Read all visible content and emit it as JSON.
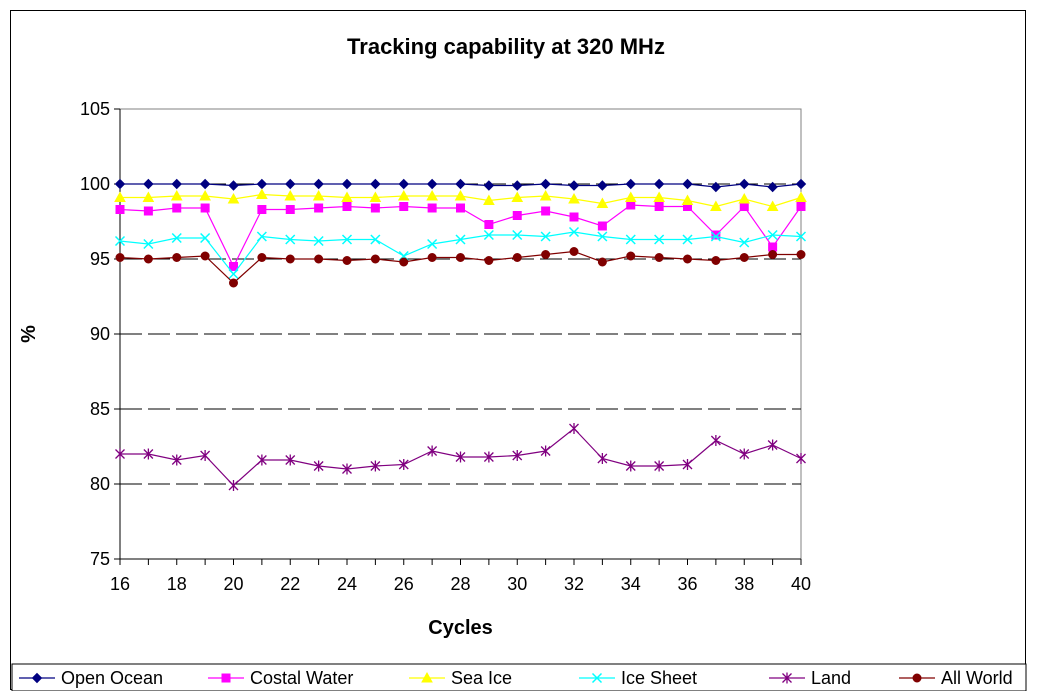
{
  "chart_data": {
    "type": "line",
    "title": "Tracking capability at 320 MHz",
    "xlabel": "Cycles",
    "ylabel": "%",
    "xlim": [
      16,
      40
    ],
    "ylim": [
      75,
      105
    ],
    "x_ticks": [
      16,
      18,
      20,
      22,
      24,
      26,
      28,
      30,
      32,
      34,
      36,
      38,
      40
    ],
    "y_ticks": [
      75,
      80,
      85,
      90,
      95,
      100,
      105
    ],
    "grid": "horizontal dashed",
    "legend_position": "bottom",
    "x": [
      16,
      17,
      18,
      19,
      20,
      21,
      22,
      23,
      24,
      25,
      26,
      27,
      28,
      29,
      30,
      31,
      32,
      33,
      34,
      35,
      36,
      37,
      38,
      39,
      40
    ],
    "series": [
      {
        "name": "Open Ocean",
        "color": "#000080",
        "marker": "diamond",
        "values": [
          100,
          100,
          100,
          100,
          99.9,
          100,
          100,
          100,
          100,
          100,
          100,
          100,
          100,
          99.9,
          99.9,
          100,
          99.9,
          99.9,
          100,
          100,
          100,
          99.8,
          100,
          99.8,
          100
        ]
      },
      {
        "name": "Costal Water",
        "color": "#ff00ff",
        "marker": "square",
        "values": [
          98.3,
          98.2,
          98.4,
          98.4,
          94.5,
          98.3,
          98.3,
          98.4,
          98.5,
          98.4,
          98.5,
          98.4,
          98.4,
          97.3,
          97.9,
          98.2,
          97.8,
          97.2,
          98.6,
          98.5,
          98.5,
          96.6,
          98.5,
          95.8,
          98.5
        ]
      },
      {
        "name": "Sea Ice",
        "color": "#ffff00",
        "marker": "triangle",
        "values": [
          99.1,
          99.1,
          99.2,
          99.2,
          99.0,
          99.3,
          99.2,
          99.2,
          99.1,
          99.1,
          99.2,
          99.2,
          99.2,
          98.9,
          99.1,
          99.2,
          99.0,
          98.7,
          99.1,
          99.1,
          98.9,
          98.5,
          99.0,
          98.5,
          99.1
        ]
      },
      {
        "name": "Ice Sheet",
        "color": "#00ffff",
        "marker": "x",
        "values": [
          96.2,
          96.0,
          96.4,
          96.4,
          94.0,
          96.5,
          96.3,
          96.2,
          96.3,
          96.3,
          95.2,
          96.0,
          96.3,
          96.6,
          96.6,
          96.5,
          96.8,
          96.5,
          96.3,
          96.3,
          96.3,
          96.5,
          96.1,
          96.6,
          96.5
        ]
      },
      {
        "name": "Land",
        "color": "#800080",
        "marker": "asterisk",
        "values": [
          82.0,
          82.0,
          81.6,
          81.9,
          79.9,
          81.6,
          81.6,
          81.2,
          81.0,
          81.2,
          81.3,
          82.2,
          81.8,
          81.8,
          81.9,
          82.2,
          83.7,
          81.7,
          81.2,
          81.2,
          81.3,
          82.9,
          82.0,
          82.6,
          81.7
        ]
      },
      {
        "name": "All World",
        "color": "#800000",
        "marker": "circle",
        "values": [
          95.1,
          95.0,
          95.1,
          95.2,
          93.4,
          95.1,
          95.0,
          95.0,
          94.9,
          95.0,
          94.8,
          95.1,
          95.1,
          94.9,
          95.1,
          95.3,
          95.5,
          94.8,
          95.2,
          95.1,
          95.0,
          94.9,
          95.1,
          95.3,
          95.3
        ]
      }
    ]
  }
}
